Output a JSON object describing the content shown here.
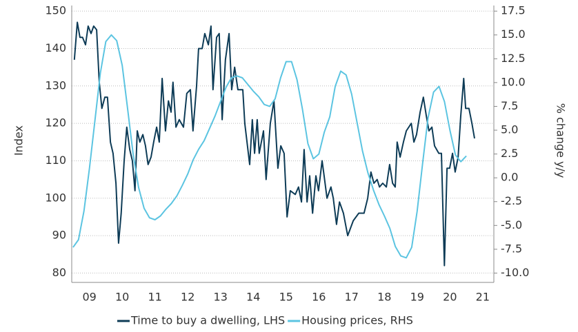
{
  "chart_data": {
    "type": "line",
    "y_label": "Index",
    "y2_label": "% change y/y",
    "xlim": [
      2008.96,
      2021.84
    ],
    "xticks": [
      {
        "value": 2009.5,
        "label": "09"
      },
      {
        "value": 2010.5,
        "label": "10"
      },
      {
        "value": 2011.5,
        "label": "11"
      },
      {
        "value": 2012.5,
        "label": "12"
      },
      {
        "value": 2013.5,
        "label": "13"
      },
      {
        "value": 2014.5,
        "label": "14"
      },
      {
        "value": 2015.5,
        "label": "15"
      },
      {
        "value": 2016.5,
        "label": "16"
      },
      {
        "value": 2017.5,
        "label": "17"
      },
      {
        "value": 2018.5,
        "label": "18"
      },
      {
        "value": 2019.5,
        "label": "19"
      },
      {
        "value": 2020.5,
        "label": "20"
      },
      {
        "value": 2021.5,
        "label": "21"
      }
    ],
    "ylim": [
      77.5,
      151.5
    ],
    "yticks": [
      80,
      90,
      100,
      110,
      120,
      130,
      140,
      150
    ],
    "y2lim": [
      -10.98,
      18.09
    ],
    "y2ticks": [
      {
        "value": -10,
        "label": "-10.0"
      },
      {
        "value": -7.5,
        "label": "-7.5"
      },
      {
        "value": -5,
        "label": "-5.0"
      },
      {
        "value": -2.5,
        "label": "-2.5"
      },
      {
        "value": 0,
        "label": "0.0"
      },
      {
        "value": 2.5,
        "label": "2.5"
      },
      {
        "value": 5,
        "label": "5.0"
      },
      {
        "value": 7.5,
        "label": "7.5"
      },
      {
        "value": 10,
        "label": "10.0"
      },
      {
        "value": 12.5,
        "label": "12.5"
      },
      {
        "value": 15,
        "label": "15.0"
      },
      {
        "value": 17.5,
        "label": "17.5"
      }
    ],
    "grid": true,
    "legend": "bottom",
    "series": [
      {
        "name": "Time to buy a dwelling, LHS",
        "color": "#0d3b56",
        "axis": "y",
        "x": [
          2009.04,
          2009.13,
          2009.21,
          2009.29,
          2009.38,
          2009.46,
          2009.55,
          2009.63,
          2009.72,
          2009.8,
          2009.88,
          2009.97,
          2010.05,
          2010.14,
          2010.22,
          2010.31,
          2010.39,
          2010.47,
          2010.56,
          2010.64,
          2010.73,
          2010.81,
          2010.89,
          2010.96,
          2011.04,
          2011.13,
          2011.21,
          2011.29,
          2011.38,
          2011.46,
          2011.55,
          2011.63,
          2011.72,
          2011.82,
          2011.91,
          2011.99,
          2012.05,
          2012.14,
          2012.24,
          2012.37,
          2012.47,
          2012.58,
          2012.66,
          2012.77,
          2012.83,
          2012.94,
          2013.02,
          2013.13,
          2013.21,
          2013.27,
          2013.38,
          2013.46,
          2013.55,
          2013.65,
          2013.76,
          2013.84,
          2013.93,
          2014.03,
          2014.18,
          2014.24,
          2014.39,
          2014.47,
          2014.54,
          2014.62,
          2014.68,
          2014.81,
          2014.89,
          2015.02,
          2015.13,
          2015.25,
          2015.34,
          2015.44,
          2015.53,
          2015.63,
          2015.78,
          2015.88,
          2015.97,
          2016.05,
          2016.14,
          2016.22,
          2016.31,
          2016.41,
          2016.49,
          2016.6,
          2016.66,
          2016.75,
          2016.87,
          2016.94,
          2017.04,
          2017.13,
          2017.25,
          2017.38,
          2017.55,
          2017.72,
          2017.88,
          2017.99,
          2018.09,
          2018.18,
          2018.28,
          2018.35,
          2018.45,
          2018.56,
          2018.66,
          2018.75,
          2018.83,
          2018.89,
          2018.98,
          2019.08,
          2019.17,
          2019.32,
          2019.4,
          2019.48,
          2019.59,
          2019.69,
          2019.78,
          2019.86,
          2019.95,
          2020.03,
          2020.16,
          2020.24,
          2020.33,
          2020.41,
          2020.49,
          2020.58,
          2020.66,
          2020.75,
          2020.83,
          2020.92,
          2020.98,
          2021.08,
          2021.17,
          2021.25
        ],
        "values": [
          137,
          147,
          143,
          143,
          141,
          146,
          144,
          146,
          145,
          131,
          124,
          127,
          127,
          115,
          112,
          104,
          88,
          96,
          110,
          119,
          113,
          110,
          102,
          118,
          115,
          117,
          114,
          109,
          111,
          115,
          119,
          115,
          132,
          118,
          126,
          123,
          131,
          119,
          121,
          119,
          128,
          129,
          118,
          130,
          140,
          140,
          144,
          141,
          146,
          129,
          143,
          144,
          121,
          137,
          144,
          129,
          135,
          129,
          129,
          120,
          109,
          121,
          112,
          121,
          112,
          118,
          105,
          120,
          126,
          108,
          114,
          112,
          95,
          102,
          101,
          103,
          99,
          113,
          99,
          106,
          96,
          106,
          102,
          110,
          106,
          100,
          103,
          100,
          93,
          99,
          96,
          90,
          94,
          96,
          96,
          100,
          107,
          104,
          105,
          103,
          104,
          103,
          109,
          104,
          103,
          115,
          111,
          115,
          118,
          120,
          115,
          117,
          123,
          127,
          122,
          118,
          119,
          114,
          112,
          112,
          82,
          108,
          108,
          112,
          107,
          111,
          122,
          132,
          124,
          124,
          120,
          116
        ]
      },
      {
        "name": "Housing prices, RHS",
        "color": "#5bc4e1",
        "axis": "y2",
        "x": [
          2009,
          2009.167,
          2009.333,
          2009.5,
          2009.667,
          2009.833,
          2010,
          2010.167,
          2010.333,
          2010.5,
          2010.667,
          2010.833,
          2011,
          2011.167,
          2011.333,
          2011.5,
          2011.667,
          2011.833,
          2012,
          2012.167,
          2012.333,
          2012.5,
          2012.667,
          2012.833,
          2013,
          2013.167,
          2013.333,
          2013.5,
          2013.667,
          2013.833,
          2014,
          2014.167,
          2014.333,
          2014.5,
          2014.667,
          2014.833,
          2015,
          2015.167,
          2015.333,
          2015.5,
          2015.667,
          2015.833,
          2016,
          2016.167,
          2016.333,
          2016.5,
          2016.667,
          2016.833,
          2017,
          2017.167,
          2017.333,
          2017.5,
          2017.667,
          2017.833,
          2018,
          2018.167,
          2018.333,
          2018.5,
          2018.667,
          2018.833,
          2019,
          2019.167,
          2019.333,
          2019.5,
          2019.667,
          2019.833,
          2020,
          2020.167,
          2020.333,
          2020.5,
          2020.667,
          2020.833,
          2021
        ],
        "values": [
          -7.3,
          -6.5,
          -3.5,
          1,
          6,
          11,
          14.3,
          15,
          14.4,
          11.8,
          7.2,
          2.5,
          -1,
          -3.2,
          -4.2,
          -4.4,
          -4,
          -3.3,
          -2.7,
          -1.9,
          -0.8,
          0.4,
          1.9,
          3,
          3.9,
          5.2,
          6.5,
          8,
          9.5,
          10.5,
          10.7,
          10.5,
          9.8,
          9.1,
          8.5,
          7.7,
          7.5,
          8.3,
          10.5,
          12.2,
          12.2,
          10.3,
          7.2,
          3.6,
          2,
          2.5,
          4.8,
          6.4,
          9.6,
          11.2,
          10.8,
          8.8,
          5.8,
          2.8,
          0.5,
          -1.3,
          -2.8,
          -4,
          -5.3,
          -7.2,
          -8.2,
          -8.4,
          -7.3,
          -3.5,
          1.5,
          6.3,
          9,
          9.6,
          8,
          5,
          2.4,
          1.7,
          2.3
        ]
      }
    ]
  }
}
